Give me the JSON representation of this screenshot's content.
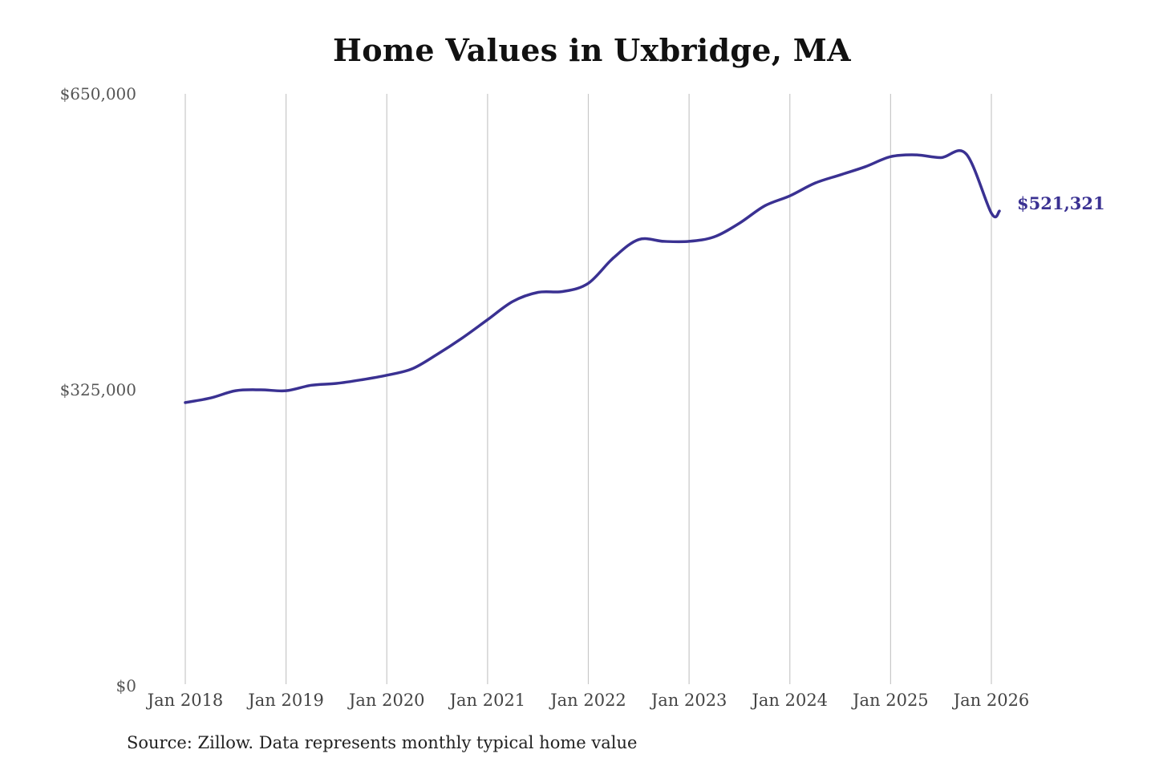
{
  "chart_data": {
    "type": "line",
    "title": "Home Values in Uxbridge, MA",
    "source": "Source: Zillow. Data represents monthly typical home value",
    "xlabel": "",
    "ylabel": "",
    "ylim": [
      0,
      650000
    ],
    "yticks": [
      {
        "value": 0,
        "label": "$0"
      },
      {
        "value": 325000,
        "label": "$325,000"
      },
      {
        "value": 650000,
        "label": "$650,000"
      }
    ],
    "xticks": [
      {
        "value": 2018,
        "label": "Jan 2018"
      },
      {
        "value": 2019,
        "label": "Jan 2019"
      },
      {
        "value": 2020,
        "label": "Jan 2020"
      },
      {
        "value": 2021,
        "label": "Jan 2021"
      },
      {
        "value": 2022,
        "label": "Jan 2022"
      },
      {
        "value": 2023,
        "label": "Jan 2023"
      },
      {
        "value": 2024,
        "label": "Jan 2024"
      },
      {
        "value": 2025,
        "label": "Jan 2025"
      },
      {
        "value": 2026,
        "label": "Jan 2026"
      }
    ],
    "xlim": [
      2018,
      2026
    ],
    "grid": "vertical",
    "line_color": "#3a3192",
    "end_label": "$521,321",
    "series": [
      {
        "x": [
          2018.0,
          2018.25,
          2018.5,
          2018.75,
          2019.0,
          2019.25,
          2019.5,
          2019.75,
          2020.0,
          2020.25,
          2020.5,
          2020.75,
          2021.0,
          2021.25,
          2021.5,
          2021.75,
          2022.0,
          2022.25,
          2022.5,
          2022.75,
          2023.0,
          2023.25,
          2023.5,
          2023.75,
          2024.0,
          2024.25,
          2024.5,
          2024.75,
          2025.0,
          2025.25,
          2025.5,
          2025.75,
          2026.0,
          2026.08
        ],
        "values": [
          311000,
          316000,
          324000,
          325000,
          324000,
          330000,
          332000,
          336000,
          341000,
          348000,
          364000,
          382000,
          402000,
          422000,
          432000,
          433000,
          442000,
          470000,
          490000,
          488000,
          488000,
          493000,
          508000,
          527000,
          538000,
          552000,
          561000,
          570000,
          581000,
          583000,
          580000,
          584000,
          519000,
          521321
        ]
      }
    ]
  }
}
